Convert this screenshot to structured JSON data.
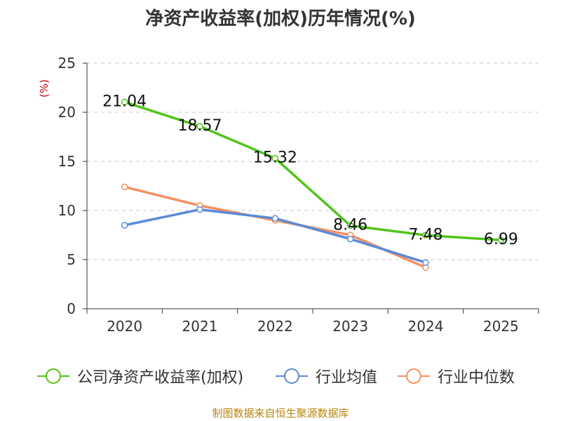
{
  "chart_data": {
    "type": "line",
    "title": "净资产收益率(加权)历年情况(%)",
    "ylabel": "(%)",
    "xlabel": "",
    "ylim": [
      0,
      25
    ],
    "yticks": [
      0,
      5,
      10,
      15,
      20,
      25
    ],
    "categories": [
      "2020",
      "2021",
      "2022",
      "2023",
      "2024",
      "2025"
    ],
    "grid": true,
    "legend_position": "bottom",
    "series": [
      {
        "name": "公司净资产收益率(加权)",
        "color": "#52c41a",
        "values": [
          21.04,
          18.57,
          15.32,
          8.46,
          7.48,
          6.99
        ],
        "labels": [
          "21.04",
          "18.57",
          "15.32",
          "8.46",
          "7.48",
          "6.99"
        ],
        "show_labels": true
      },
      {
        "name": "行业均值",
        "color": "#5b8ad8",
        "values": [
          8.5,
          10.1,
          9.2,
          7.1,
          4.7,
          null
        ],
        "show_labels": false
      },
      {
        "name": "行业中位数",
        "color": "#f4905f",
        "values": [
          12.4,
          10.5,
          9.0,
          7.5,
          4.2,
          null
        ],
        "show_labels": false
      }
    ]
  },
  "source": "制图数据来自恒生聚源数据库"
}
